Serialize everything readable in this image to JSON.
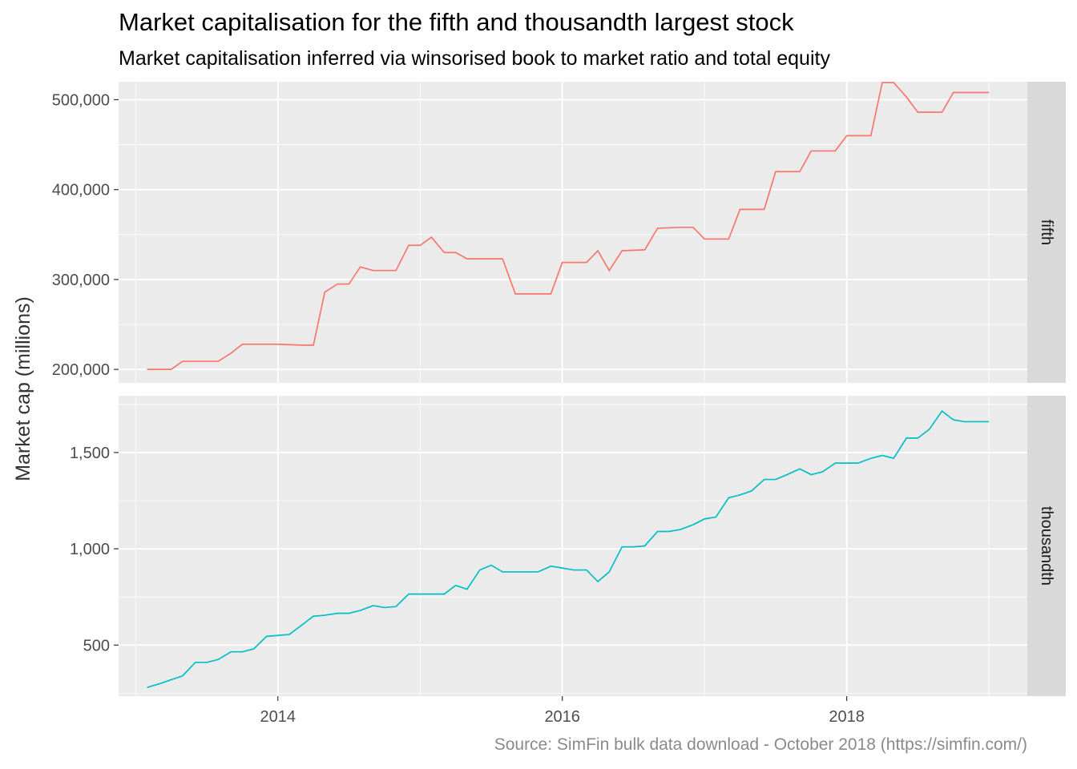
{
  "title": "Market capitalisation for the fifth and thousandth largest stock",
  "subtitle": "Market capitalisation inferred via winsorised book to market ratio and total equity",
  "caption": "Source: SimFin bulk data download - October 2018 (https://simfin.com/)",
  "chart_data": {
    "type": "line",
    "ylabel": "Market cap (millions)",
    "xlabel": "",
    "x_ticks": [
      "2014",
      "2016",
      "2018"
    ],
    "x_tick_values": [
      2014,
      2016,
      2018
    ],
    "xlim": [
      2012.88,
      2019.27
    ],
    "grid": true,
    "legend": "none",
    "panels": [
      {
        "name": "fifth",
        "color": "#F8766D",
        "ylim": [
          185000,
          520000
        ],
        "y_ticks": [
          200000,
          300000,
          400000,
          500000
        ],
        "y_tick_labels": [
          "200,000",
          "300,000",
          "400,000",
          "500,000"
        ],
        "x": [
          2013.08,
          2013.25,
          2013.33,
          2013.58,
          2013.67,
          2013.75,
          2014.0,
          2014.17,
          2014.25,
          2014.33,
          2014.42,
          2014.5,
          2014.58,
          2014.67,
          2014.83,
          2014.92,
          2015.0,
          2015.08,
          2015.17,
          2015.25,
          2015.33,
          2015.58,
          2015.67,
          2015.92,
          2016.0,
          2016.17,
          2016.25,
          2016.33,
          2016.42,
          2016.58,
          2016.67,
          2016.83,
          2016.92,
          2017.0,
          2017.17,
          2017.25,
          2017.42,
          2017.5,
          2017.67,
          2017.75,
          2017.92,
          2018.0,
          2018.17,
          2018.25,
          2018.33,
          2018.42,
          2018.5,
          2018.67,
          2018.75,
          2019.0
        ],
        "y": [
          200000,
          200000,
          209000,
          209000,
          218000,
          228000,
          228000,
          227000,
          227000,
          286000,
          295000,
          295000,
          314000,
          310000,
          310000,
          338000,
          338000,
          347000,
          330000,
          330000,
          323000,
          323000,
          284000,
          284000,
          319000,
          319000,
          332000,
          310000,
          332000,
          333000,
          357000,
          358000,
          358000,
          345000,
          345000,
          378000,
          378000,
          420000,
          420000,
          443000,
          443000,
          460000,
          460000,
          519000,
          519000,
          503000,
          486000,
          486000,
          508000,
          508000
        ]
      },
      {
        "name": "thousandth",
        "color": "#00BFC4",
        "ylim": [
          235,
          1795
        ],
        "y_ticks": [
          500,
          1000,
          1500
        ],
        "y_tick_labels": [
          "500",
          "1,000",
          "1,500"
        ],
        "x": [
          2013.08,
          2013.17,
          2013.25,
          2013.33,
          2013.42,
          2013.5,
          2013.58,
          2013.67,
          2013.75,
          2013.83,
          2013.92,
          2014.0,
          2014.08,
          2014.17,
          2014.25,
          2014.33,
          2014.42,
          2014.5,
          2014.58,
          2014.67,
          2014.75,
          2014.83,
          2014.92,
          2015.0,
          2015.08,
          2015.17,
          2015.25,
          2015.33,
          2015.42,
          2015.5,
          2015.58,
          2015.67,
          2015.75,
          2015.83,
          2015.92,
          2016.0,
          2016.08,
          2016.17,
          2016.25,
          2016.33,
          2016.42,
          2016.5,
          2016.58,
          2016.67,
          2016.75,
          2016.83,
          2016.92,
          2017.0,
          2017.08,
          2017.17,
          2017.25,
          2017.33,
          2017.42,
          2017.5,
          2017.58,
          2017.67,
          2017.75,
          2017.83,
          2017.92,
          2018.0,
          2018.08,
          2018.17,
          2018.25,
          2018.33,
          2018.42,
          2018.5,
          2018.58,
          2018.67,
          2018.75,
          2018.83,
          2019.0
        ],
        "y": [
          280,
          300,
          320,
          340,
          410,
          410,
          425,
          465,
          465,
          480,
          545,
          550,
          555,
          605,
          650,
          655,
          665,
          665,
          680,
          705,
          695,
          700,
          765,
          765,
          765,
          765,
          810,
          790,
          890,
          915,
          880,
          880,
          880,
          880,
          910,
          900,
          890,
          890,
          830,
          880,
          1010,
          1010,
          1015,
          1090,
          1090,
          1100,
          1125,
          1155,
          1165,
          1265,
          1280,
          1300,
          1360,
          1360,
          1385,
          1415,
          1385,
          1400,
          1445,
          1445,
          1445,
          1470,
          1485,
          1470,
          1575,
          1575,
          1620,
          1715,
          1670,
          1660,
          1660
        ]
      }
    ]
  }
}
